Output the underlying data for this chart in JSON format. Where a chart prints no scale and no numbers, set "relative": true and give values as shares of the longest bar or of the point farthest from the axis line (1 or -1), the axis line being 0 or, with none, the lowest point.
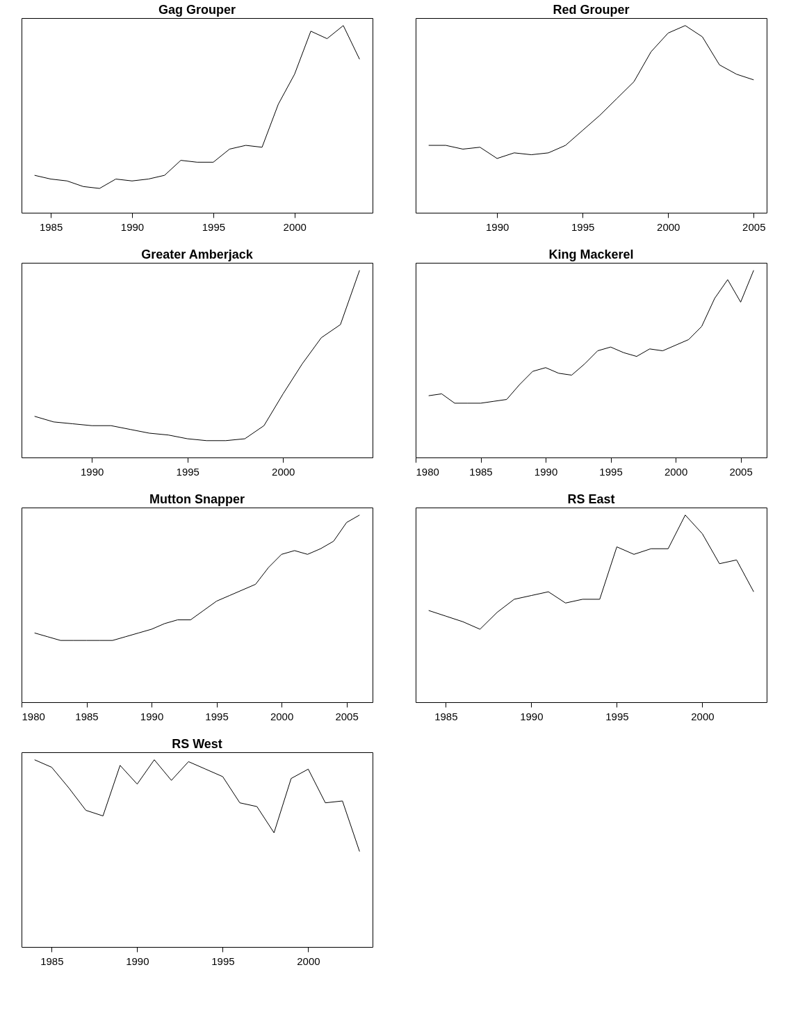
{
  "chart_data": [
    {
      "type": "line",
      "title": "Gag Grouper",
      "relative": true,
      "color": "#000000",
      "xlim": [
        1983.2,
        2004.8
      ],
      "xticks": [
        1985,
        1990,
        1995,
        2000
      ],
      "x": [
        1984,
        1985,
        1986,
        1987,
        1988,
        1989,
        1990,
        1991,
        1992,
        1993,
        1994,
        1995,
        1996,
        1997,
        1998,
        1999,
        2000,
        2001,
        2002,
        2003,
        2004
      ],
      "values": [
        0.2,
        0.18,
        0.17,
        0.14,
        0.13,
        0.18,
        0.17,
        0.18,
        0.2,
        0.28,
        0.27,
        0.27,
        0.34,
        0.36,
        0.35,
        0.58,
        0.74,
        0.97,
        0.93,
        1.0,
        0.82
      ]
    },
    {
      "type": "line",
      "title": "Red Grouper",
      "relative": true,
      "color": "#000000",
      "xlim": [
        1985.24,
        2005.76
      ],
      "xticks": [
        1990,
        1995,
        2000,
        2005
      ],
      "x": [
        1986,
        1987,
        1988,
        1989,
        1990,
        1991,
        1992,
        1993,
        1994,
        1995,
        1996,
        1997,
        1998,
        1999,
        2000,
        2001,
        2002,
        2003,
        2004,
        2005
      ],
      "values": [
        0.36,
        0.36,
        0.34,
        0.35,
        0.29,
        0.32,
        0.31,
        0.32,
        0.36,
        0.44,
        0.52,
        0.61,
        0.7,
        0.86,
        0.96,
        1.0,
        0.94,
        0.79,
        0.74,
        0.71
      ]
    },
    {
      "type": "line",
      "title": "Greater Amberjack",
      "relative": true,
      "color": "#000000",
      "xlim": [
        1986.32,
        2004.68
      ],
      "xticks": [
        1990,
        1995,
        2000
      ],
      "x": [
        1987,
        1988,
        1989,
        1990,
        1991,
        1992,
        1993,
        1994,
        1995,
        1996,
        1997,
        1998,
        1999,
        2000,
        2001,
        2002,
        2003,
        2004
      ],
      "values": [
        0.22,
        0.19,
        0.18,
        0.17,
        0.17,
        0.15,
        0.13,
        0.12,
        0.1,
        0.09,
        0.09,
        0.1,
        0.17,
        0.34,
        0.5,
        0.64,
        0.71,
        1.0
      ]
    },
    {
      "type": "line",
      "title": "King Mackerel",
      "relative": true,
      "color": "#000000",
      "xlim": [
        1980,
        2007
      ],
      "xticks": [
        1980,
        1985,
        1990,
        1995,
        2000,
        2005
      ],
      "x": [
        1981,
        1982,
        1983,
        1984,
        1985,
        1986,
        1987,
        1988,
        1989,
        1990,
        1991,
        1992,
        1993,
        1994,
        1995,
        1996,
        1997,
        1998,
        1999,
        2000,
        2001,
        2002,
        2003,
        2004,
        2005,
        2006
      ],
      "values": [
        0.33,
        0.34,
        0.29,
        0.29,
        0.29,
        0.3,
        0.31,
        0.39,
        0.46,
        0.48,
        0.45,
        0.44,
        0.5,
        0.57,
        0.59,
        0.56,
        0.54,
        0.58,
        0.57,
        0.6,
        0.63,
        0.7,
        0.85,
        0.95,
        0.83,
        1.0
      ]
    },
    {
      "type": "line",
      "title": "Mutton Snapper",
      "relative": true,
      "color": "#000000",
      "xlim": [
        1980,
        2007
      ],
      "xticks": [
        1980,
        1985,
        1990,
        1995,
        2000,
        2005
      ],
      "x": [
        1981,
        1982,
        1983,
        1984,
        1985,
        1986,
        1987,
        1988,
        1989,
        1990,
        1991,
        1992,
        1993,
        1994,
        1995,
        1996,
        1997,
        1998,
        1999,
        2000,
        2001,
        2002,
        2003,
        2004,
        2005,
        2006
      ],
      "values": [
        0.37,
        0.35,
        0.33,
        0.33,
        0.33,
        0.33,
        0.33,
        0.35,
        0.37,
        0.39,
        0.42,
        0.44,
        0.44,
        0.49,
        0.54,
        0.57,
        0.6,
        0.63,
        0.72,
        0.79,
        0.81,
        0.79,
        0.82,
        0.86,
        0.96,
        1.0
      ]
    },
    {
      "type": "line",
      "title": "RS East",
      "relative": true,
      "color": "#000000",
      "xlim": [
        1983.24,
        2003.76
      ],
      "xticks": [
        1985,
        1990,
        1995,
        2000
      ],
      "x": [
        1984,
        1985,
        1986,
        1987,
        1988,
        1989,
        1990,
        1991,
        1992,
        1993,
        1994,
        1995,
        1996,
        1997,
        1998,
        1999,
        2000,
        2001,
        2002,
        2003
      ],
      "values": [
        0.49,
        0.46,
        0.43,
        0.39,
        0.48,
        0.55,
        0.57,
        0.59,
        0.53,
        0.55,
        0.55,
        0.83,
        0.79,
        0.82,
        0.82,
        1.0,
        0.9,
        0.74,
        0.76,
        0.59
      ]
    },
    {
      "type": "line",
      "title": "RS West",
      "relative": true,
      "color": "#000000",
      "xlim": [
        1983.24,
        2003.76
      ],
      "xticks": [
        1985,
        1990,
        1995,
        2000
      ],
      "x": [
        1984,
        1985,
        1986,
        1987,
        1988,
        1989,
        1990,
        1991,
        1992,
        1993,
        1994,
        1995,
        1996,
        1997,
        1998,
        1999,
        2000,
        2001,
        2002,
        2003
      ],
      "values": [
        1.0,
        0.96,
        0.85,
        0.73,
        0.7,
        0.97,
        0.87,
        1.0,
        0.89,
        0.99,
        0.95,
        0.91,
        0.77,
        0.75,
        0.61,
        0.9,
        0.95,
        0.77,
        0.78,
        0.51
      ]
    }
  ]
}
